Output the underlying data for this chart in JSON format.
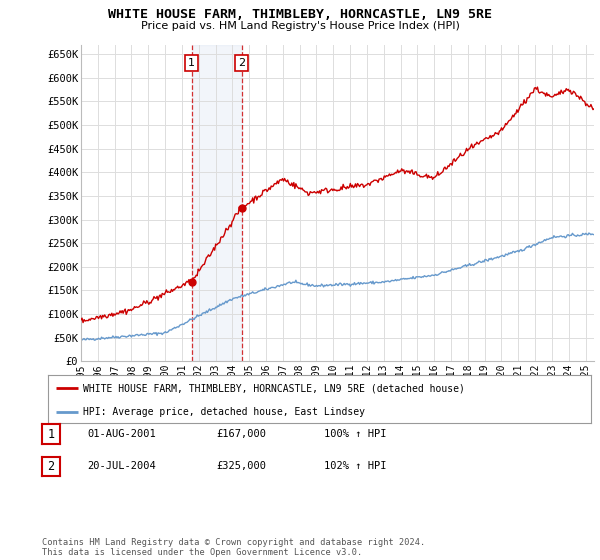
{
  "title": "WHITE HOUSE FARM, THIMBLEBY, HORNCASTLE, LN9 5RE",
  "subtitle": "Price paid vs. HM Land Registry's House Price Index (HPI)",
  "ylim": [
    0,
    670000
  ],
  "yticks": [
    0,
    50000,
    100000,
    150000,
    200000,
    250000,
    300000,
    350000,
    400000,
    450000,
    500000,
    550000,
    600000,
    650000
  ],
  "ytick_labels": [
    "£0",
    "£50K",
    "£100K",
    "£150K",
    "£200K",
    "£250K",
    "£300K",
    "£350K",
    "£400K",
    "£450K",
    "£500K",
    "£550K",
    "£600K",
    "£650K"
  ],
  "purchase1": {
    "date_num": 2001.583,
    "price": 167000,
    "label": "1"
  },
  "purchase2": {
    "date_num": 2004.554,
    "price": 325000,
    "label": "2"
  },
  "hpi_color": "#6699cc",
  "price_color": "#cc0000",
  "background_color": "#ffffff",
  "grid_color": "#dddddd",
  "legend_label_price": "WHITE HOUSE FARM, THIMBLEBY, HORNCASTLE, LN9 5RE (detached house)",
  "legend_label_hpi": "HPI: Average price, detached house, East Lindsey",
  "table_row1": [
    "1",
    "01-AUG-2001",
    "£167,000",
    "100% ↑ HPI"
  ],
  "table_row2": [
    "2",
    "20-JUL-2004",
    "£325,000",
    "102% ↑ HPI"
  ],
  "footer": "Contains HM Land Registry data © Crown copyright and database right 2024.\nThis data is licensed under the Open Government Licence v3.0.",
  "purchase1_marker_color": "#cc0000",
  "purchase2_marker_color": "#cc0000",
  "span_color": "#ccd9ee"
}
